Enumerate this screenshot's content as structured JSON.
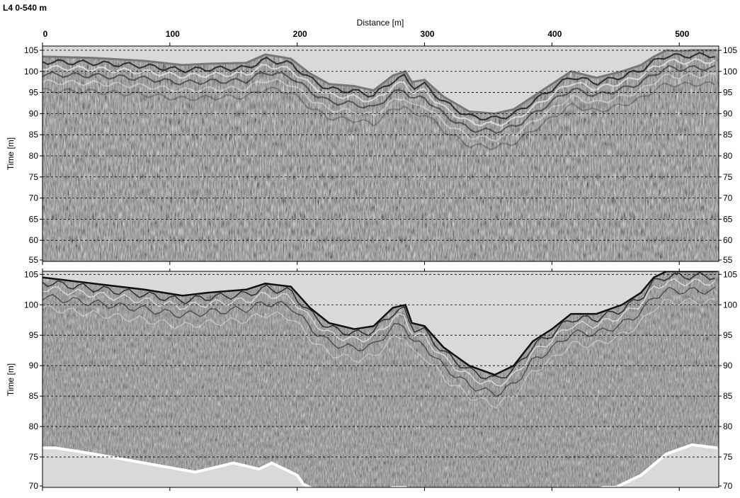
{
  "title": "L4 0-540 m",
  "colors": {
    "background": "#ffffff",
    "air": "#d9d9d9",
    "noise": "#8a8a8a",
    "grid": "#000000"
  },
  "chart_data": [
    {
      "type": "heatmap",
      "title": "L4 0-540 m",
      "xlabel": "Distance [m]",
      "ylabel": "Time [m]",
      "xlim": [
        0,
        540
      ],
      "ylim": [
        55,
        106
      ],
      "x_ticks": [
        0,
        100,
        200,
        300,
        400,
        500
      ],
      "y_ticks": [
        55,
        60,
        65,
        70,
        75,
        80,
        85,
        90,
        95,
        100,
        105
      ],
      "grid": "dashed horizontal lines",
      "surface": {
        "x": [
          0,
          40,
          80,
          110,
          130,
          160,
          175,
          195,
          210,
          225,
          245,
          260,
          275,
          285,
          290,
          300,
          315,
          335,
          355,
          370,
          385,
          400,
          415,
          435,
          455,
          470,
          480,
          490,
          500,
          510,
          530
        ],
        "y": [
          103.5,
          103.2,
          102.5,
          101.5,
          101.8,
          102.0,
          104.0,
          103.0,
          99.5,
          97.0,
          96.5,
          95.5,
          99.0,
          100.0,
          97.5,
          98.0,
          94.0,
          90.5,
          90.0,
          91.0,
          94.0,
          97.0,
          100.0,
          98.5,
          100.0,
          101.5,
          103.5,
          105.0,
          104.8,
          105.0,
          105.0
        ]
      }
    },
    {
      "type": "heatmap",
      "xlabel": "",
      "ylabel": "Time [m]",
      "xlim": [
        0,
        540
      ],
      "ylim": [
        70,
        105.5
      ],
      "x_ticks": [
        0,
        100,
        200,
        300,
        400,
        500
      ],
      "y_ticks": [
        70,
        75,
        80,
        85,
        90,
        95,
        100,
        105
      ],
      "grid": "dashed horizontal lines",
      "surface": {
        "x": [
          0,
          40,
          80,
          110,
          130,
          160,
          175,
          195,
          210,
          225,
          245,
          260,
          275,
          285,
          290,
          300,
          315,
          335,
          355,
          370,
          385,
          400,
          415,
          435,
          455,
          470,
          480,
          490,
          500,
          510,
          530
        ],
        "y": [
          104.5,
          103.5,
          102.5,
          101.5,
          102.0,
          102.5,
          103.5,
          103.0,
          99.5,
          97.0,
          96.0,
          96.5,
          99.5,
          100.0,
          97.0,
          96.5,
          93.0,
          90.0,
          88.5,
          90.0,
          94.0,
          96.0,
          98.5,
          98.5,
          100.0,
          102.0,
          104.5,
          105.5,
          105.5,
          105.5,
          105.5
        ]
      },
      "bottom_boundary": {
        "x": [
          0,
          10,
          40,
          80,
          120,
          130,
          150,
          170,
          180,
          200,
          205,
          210,
          215,
          270,
          275,
          285,
          290,
          430,
          440,
          450,
          470,
          490,
          510,
          530
        ],
        "y": [
          76.5,
          76.5,
          75.5,
          74.0,
          72.5,
          73.0,
          74.0,
          73.0,
          74.0,
          72.0,
          70.5,
          70.0,
          69.5,
          69.5,
          70.0,
          70.0,
          69.0,
          69.0,
          70.0,
          70.0,
          72.0,
          75.5,
          77.0,
          76.5
        ]
      }
    }
  ]
}
